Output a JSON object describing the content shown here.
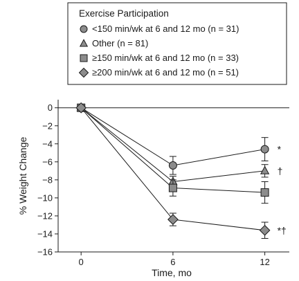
{
  "chart_data": {
    "type": "line",
    "title": "",
    "xlabel": "Time, mo",
    "ylabel": "% Weight Change",
    "x": [
      0,
      6,
      12
    ],
    "x_ticks": [
      "0",
      "6",
      "12"
    ],
    "xlim": [
      -1.5,
      13.6
    ],
    "ylim": [
      -16,
      0.9
    ],
    "y_ticks": [
      "0",
      "−2",
      "−4",
      "−6",
      "−8",
      "−10",
      "−12",
      "−14",
      "−16"
    ],
    "grid": false,
    "legend_position": "top",
    "legend_title": "Exercise Participation",
    "series": [
      {
        "name": "<150 min/wk at 6 and 12 mo (n = 31)",
        "marker": "circle",
        "values": [
          0,
          -6.4,
          -4.6
        ],
        "error": [
          0,
          1.0,
          1.3
        ],
        "annotation": "*"
      },
      {
        "name": "Other (n = 81)",
        "marker": "triangle",
        "values": [
          0,
          -8.2,
          -7.0
        ],
        "error": [
          0,
          0.6,
          0.7
        ],
        "annotation": "†"
      },
      {
        "name": "≥150 min/wk at 6 and 12 mo (n = 33)",
        "marker": "square",
        "values": [
          0,
          -8.9,
          -9.4
        ],
        "error": [
          0,
          0.9,
          1.2
        ],
        "annotation": ""
      },
      {
        "name": "≥200 min/wk at 6 and 12 mo (n = 51)",
        "marker": "diamond",
        "values": [
          0,
          -12.4,
          -13.6
        ],
        "error": [
          0,
          0.7,
          0.9
        ],
        "annotation": "*†"
      }
    ],
    "colors": {
      "marker_fill": "#8c8c8c",
      "stroke": "#1a1a1a",
      "axis": "#1a1a1a"
    }
  }
}
